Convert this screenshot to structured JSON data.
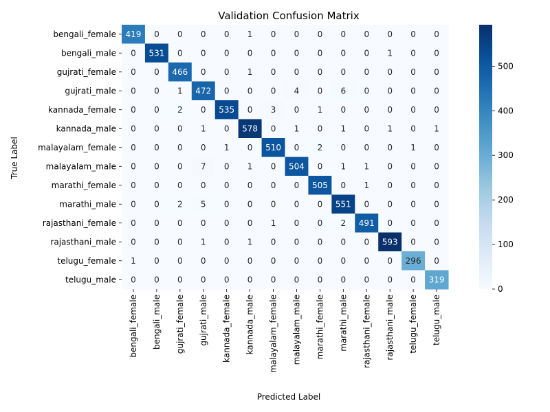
{
  "chart_data": {
    "type": "heatmap",
    "title": "Validation Confusion Matrix",
    "xlabel": "Predicted Label",
    "ylabel": "True Label",
    "row_labels": [
      "bengali_female",
      "bengali_male",
      "gujrati_female",
      "gujrati_male",
      "kannada_female",
      "kannada_male",
      "malayalam_female",
      "malayalam_male",
      "marathi_female",
      "marathi_male",
      "rajasthani_female",
      "rajasthani_male",
      "telugu_female",
      "telugu_male"
    ],
    "col_labels": [
      "bengali_female",
      "bengali_male",
      "gujrati_female",
      "gujrati_male",
      "kannada_female",
      "kannada_male",
      "malayalam_female",
      "malayalam_male",
      "marathi_female",
      "marathi_male",
      "rajasthani_female",
      "rajasthani_male",
      "telugu_female",
      "telugu_male"
    ],
    "values": [
      [
        419,
        0,
        0,
        0,
        0,
        1,
        0,
        0,
        0,
        0,
        0,
        0,
        0,
        0
      ],
      [
        0,
        531,
        0,
        0,
        0,
        0,
        0,
        0,
        0,
        0,
        0,
        1,
        0,
        0
      ],
      [
        0,
        0,
        466,
        0,
        0,
        1,
        0,
        0,
        0,
        0,
        0,
        0,
        0,
        0
      ],
      [
        0,
        0,
        1,
        472,
        0,
        0,
        0,
        4,
        0,
        6,
        0,
        0,
        0,
        0
      ],
      [
        0,
        0,
        2,
        0,
        535,
        0,
        3,
        0,
        1,
        0,
        0,
        0,
        0,
        0
      ],
      [
        0,
        0,
        0,
        1,
        0,
        578,
        0,
        1,
        0,
        1,
        0,
        1,
        0,
        1
      ],
      [
        0,
        0,
        0,
        0,
        1,
        0,
        510,
        0,
        2,
        0,
        0,
        0,
        1,
        0
      ],
      [
        0,
        0,
        0,
        7,
        0,
        1,
        0,
        504,
        0,
        1,
        1,
        0,
        0,
        0
      ],
      [
        0,
        0,
        0,
        0,
        0,
        0,
        0,
        0,
        505,
        0,
        1,
        0,
        0,
        0
      ],
      [
        0,
        0,
        2,
        5,
        0,
        0,
        0,
        0,
        0,
        551,
        0,
        0,
        0,
        0
      ],
      [
        0,
        0,
        0,
        0,
        0,
        0,
        1,
        0,
        0,
        2,
        491,
        0,
        0,
        0
      ],
      [
        0,
        0,
        0,
        1,
        0,
        1,
        0,
        0,
        0,
        0,
        0,
        593,
        0,
        0
      ],
      [
        1,
        0,
        0,
        0,
        0,
        0,
        0,
        0,
        0,
        0,
        0,
        0,
        296,
        0
      ],
      [
        0,
        0,
        0,
        0,
        0,
        0,
        0,
        0,
        0,
        0,
        0,
        0,
        0,
        319
      ]
    ],
    "colormap": "Blues",
    "vmin": 0,
    "vmax": 593,
    "colorbar_ticks": [
      0,
      100,
      200,
      300,
      400,
      500
    ],
    "grid": false,
    "legend": "colorbar-right"
  }
}
